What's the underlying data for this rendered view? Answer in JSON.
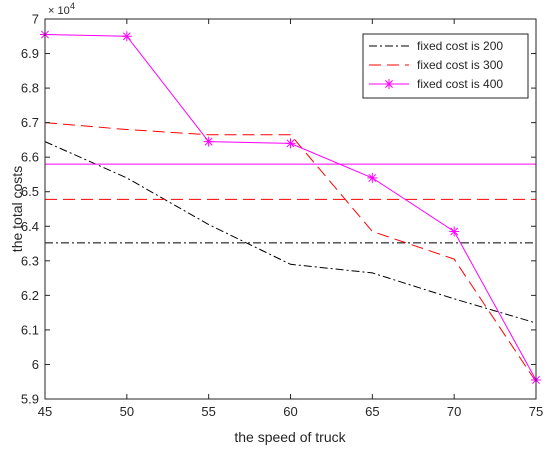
{
  "chart_data": {
    "type": "line",
    "title": "",
    "xlabel": "the speed of truck",
    "ylabel": "the total costs",
    "y_multiplier": {
      "base": "× 10",
      "exp": "4"
    },
    "xlim": [
      45,
      75
    ],
    "ylim": [
      59000,
      70000
    ],
    "x_ticks": [
      45,
      50,
      55,
      60,
      65,
      70,
      75
    ],
    "y_ticks": [
      59000,
      60000,
      61000,
      62000,
      63000,
      64000,
      65000,
      66000,
      67000,
      68000,
      69000,
      70000
    ],
    "y_tick_labels": [
      "5.9",
      "6",
      "6.1",
      "6.2",
      "6.3",
      "6.4",
      "6.5",
      "6.6",
      "6.7",
      "6.8",
      "6.9",
      "7"
    ],
    "grid": false,
    "legend_position": "top-right",
    "series": [
      {
        "name": "fixed cost is 200",
        "color": "#000000",
        "line_style": "dash-dot",
        "marker": "none",
        "x": [
          45,
          50,
          55,
          60,
          65,
          70,
          75
        ],
        "y": [
          66450,
          65400,
          64050,
          62900,
          62650,
          61900,
          61200
        ],
        "average": 63520
      },
      {
        "name": "fixed cost is 300",
        "color": "#ff0000",
        "line_style": "dashed",
        "marker": "none",
        "x": [
          45,
          50,
          55,
          60,
          65,
          70,
          75
        ],
        "y": [
          67000,
          66800,
          66650,
          66650,
          63850,
          63050,
          59500
        ],
        "average": 64780
      },
      {
        "name": "fixed cost is 400",
        "color": "#ff00ff",
        "line_style": "solid",
        "marker": "star",
        "x": [
          45,
          50,
          55,
          60,
          65,
          70,
          75
        ],
        "y": [
          69550,
          69500,
          66450,
          66400,
          65400,
          63850,
          59550
        ],
        "average": 65800
      }
    ]
  }
}
